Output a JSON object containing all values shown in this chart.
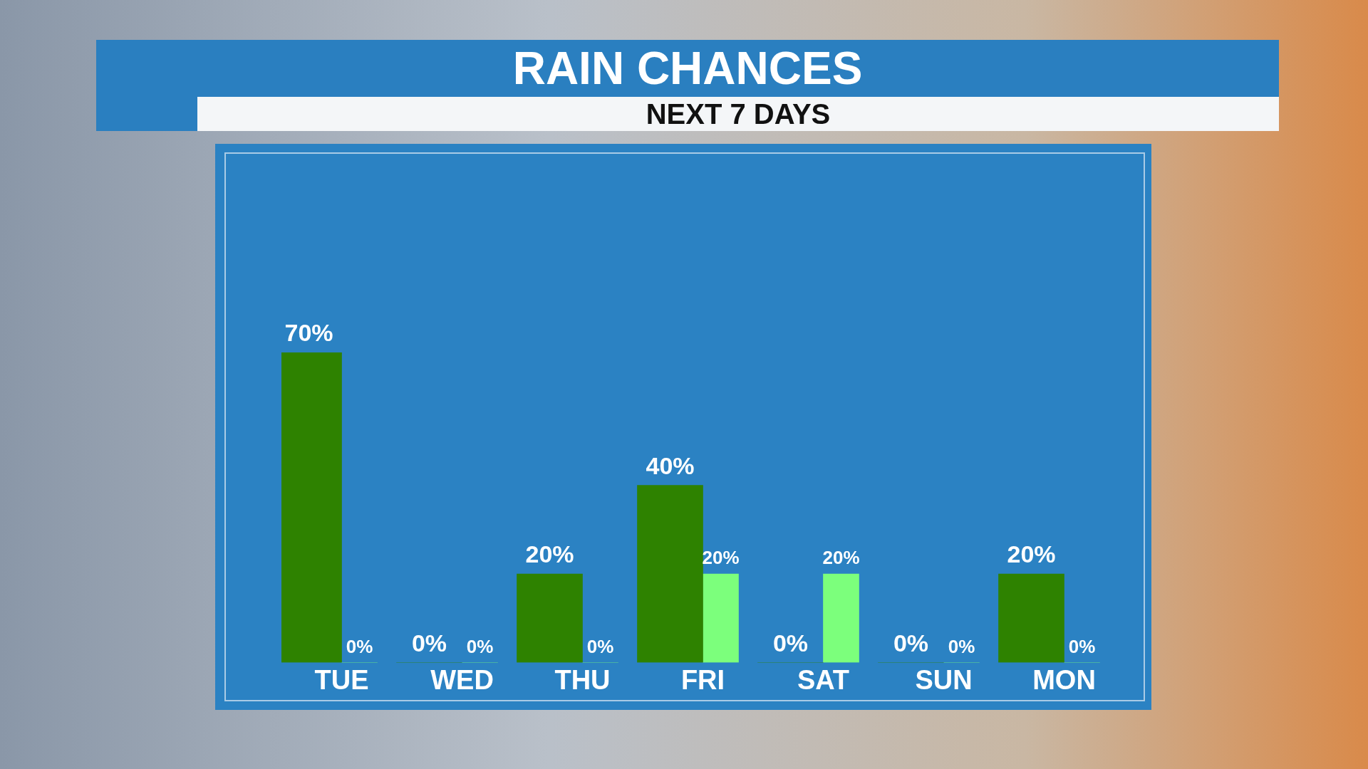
{
  "chart_data": {
    "type": "bar",
    "title": "RAIN CHANCES",
    "subtitle": "NEXT 7 DAYS",
    "categories": [
      "TUE",
      "WED",
      "THU",
      "FRI",
      "SAT",
      "SUN",
      "MON"
    ],
    "series": [
      {
        "color": "#2e8200",
        "values": [
          70,
          0,
          20,
          40,
          0,
          0,
          20
        ],
        "value_labels": [
          "70%",
          "0%",
          "20%",
          "40%",
          "0%",
          "0%",
          "20%"
        ]
      },
      {
        "color": "#7cff7c",
        "values": [
          0,
          0,
          0,
          20,
          20,
          0,
          0
        ],
        "value_labels": [
          "0%",
          "0%",
          "0%",
          "20%",
          "20%",
          "0%",
          "0%"
        ]
      }
    ],
    "tick_labels": "x",
    "grid": false,
    "legend": false
  }
}
